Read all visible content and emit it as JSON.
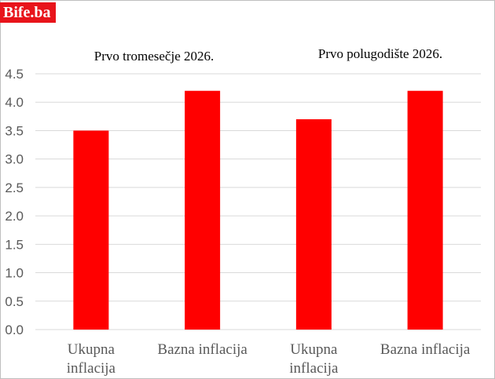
{
  "brand": {
    "logo_text": "Bife.ba"
  },
  "chart_data": {
    "type": "bar",
    "categories": [
      [
        "Ukupna",
        "inflacija"
      ],
      [
        "Bazna inflacija"
      ],
      [
        "Ukupna",
        "inflacija"
      ],
      [
        "Bazna inflacija"
      ]
    ],
    "values": [
      3.5,
      4.2,
      3.7,
      4.2
    ],
    "annotations": [
      "Prvo tromesečje 2026.",
      "Prvo polugodište 2026."
    ],
    "ylim": [
      0,
      4.5
    ],
    "yticks": [
      "0.0",
      "0.5",
      "1.0",
      "1.5",
      "2.0",
      "2.5",
      "3.0",
      "3.5",
      "4.0",
      "4.5"
    ],
    "grid": true,
    "bar_color": "#ff0000",
    "title": "",
    "xlabel": "",
    "ylabel": ""
  }
}
